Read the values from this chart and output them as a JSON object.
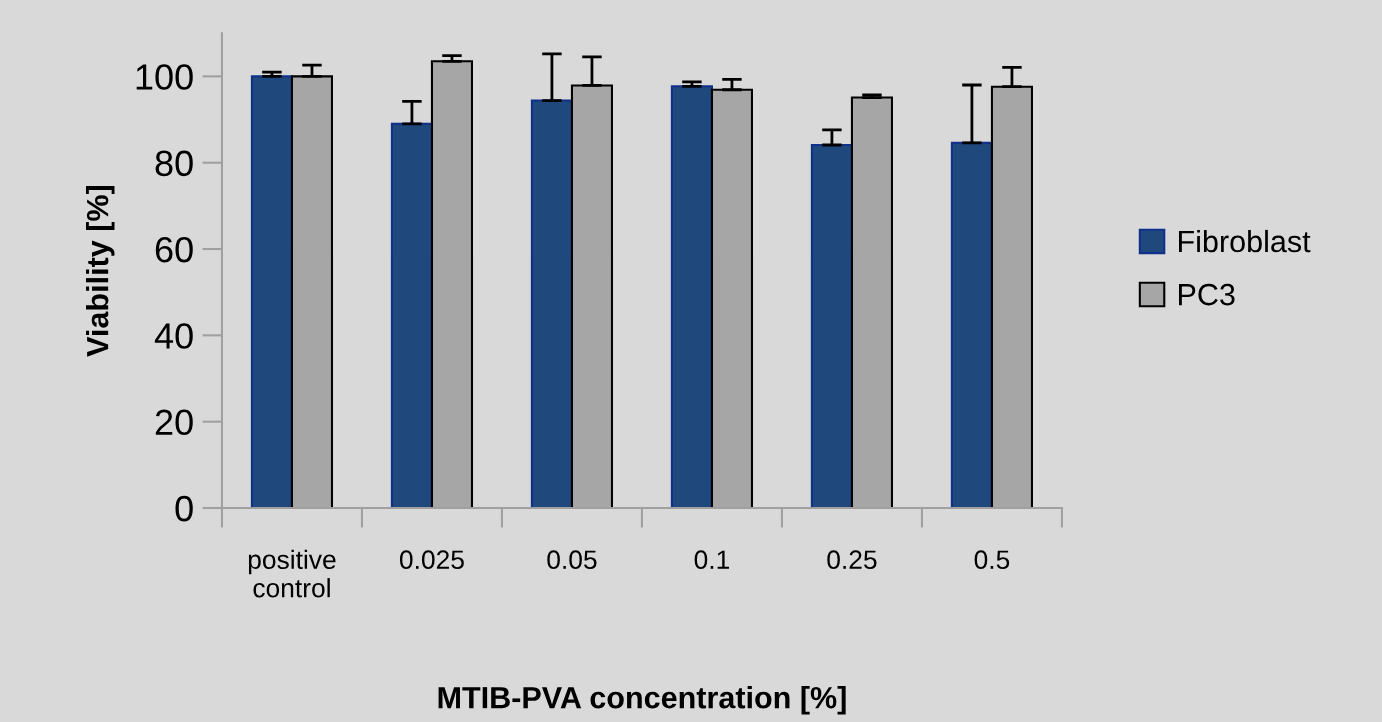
{
  "chart_data": {
    "type": "bar",
    "xlabel": "MTIB-PVA concentration [%]",
    "ylabel": "Viability [%]",
    "categories": [
      "positive\ncontrol",
      "0.025",
      "0.05",
      "0.1",
      "0.25",
      "0.5"
    ],
    "series": [
      {
        "name": "Fibroblast",
        "color": "#1f497d",
        "values": [
          100,
          89.0,
          94.4,
          97.7,
          84.1,
          84.6
        ],
        "errors": [
          [
            100,
            101
          ],
          [
            89.0,
            94.2
          ],
          [
            94.4,
            105.2
          ],
          [
            97.7,
            98.7
          ],
          [
            84.1,
            87.6
          ],
          [
            84.6,
            98.0
          ]
        ]
      },
      {
        "name": "PC3",
        "color": "#a6a6a6",
        "values": [
          100,
          103.5,
          97.9,
          96.9,
          95.1,
          97.6
        ],
        "errors": [
          [
            100,
            102.6
          ],
          [
            103.5,
            104.8
          ],
          [
            97.9,
            104.5
          ],
          [
            96.9,
            99.3
          ],
          [
            95.1,
            95.7
          ],
          [
            97.6,
            102.1
          ]
        ]
      }
    ],
    "ylim": [
      0,
      110
    ],
    "yticks": [
      0,
      20,
      40,
      60,
      80,
      100
    ],
    "grid": false,
    "legend": "right"
  }
}
